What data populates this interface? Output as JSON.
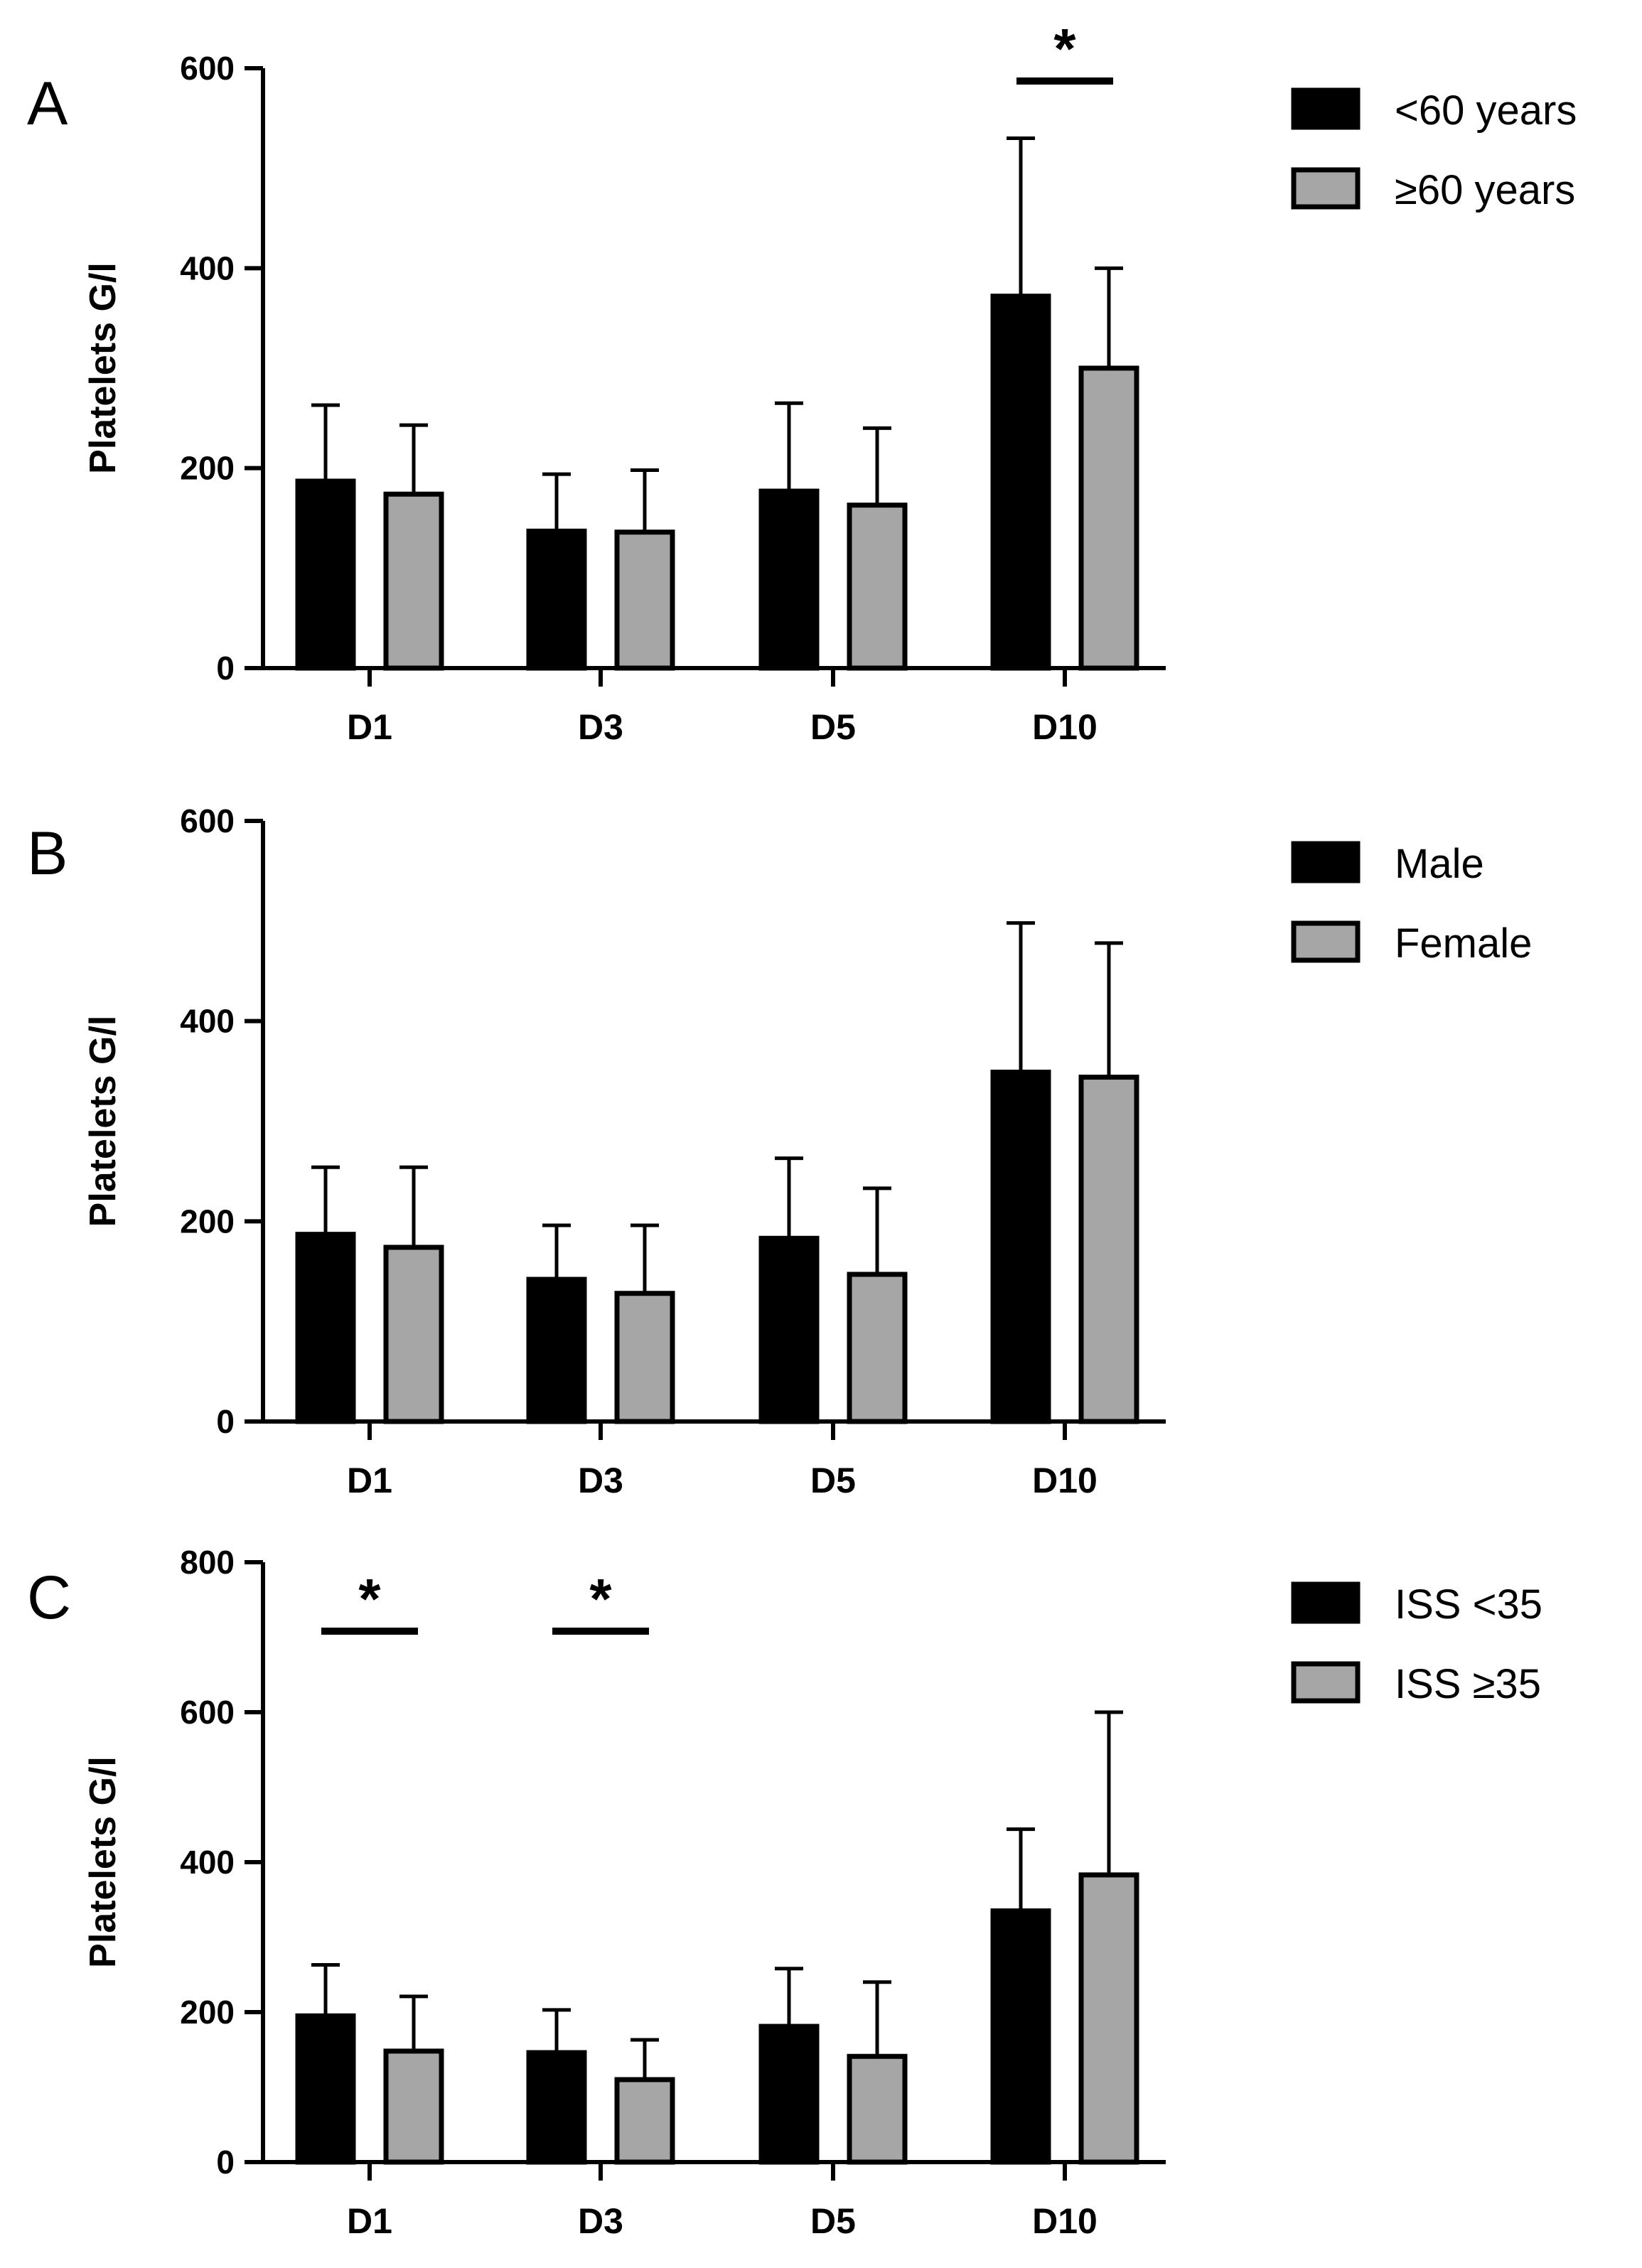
{
  "colors": {
    "series_1": "#000000",
    "series_2": "#a6a6a6",
    "axis": "#000000"
  },
  "chart_data": [
    {
      "type": "bar",
      "panel": "A",
      "ylabel": "Platelets G/l",
      "xlabel": "",
      "categories": [
        "D1",
        "D3",
        "D5",
        "D10"
      ],
      "ylim": [
        0,
        600
      ],
      "yticks": [
        "0",
        "200",
        "400",
        "600"
      ],
      "legend_position": "right",
      "series": [
        {
          "name": "<60 years",
          "values": [
            187,
            137,
            177,
            372
          ],
          "errors": [
            76,
            57,
            88,
            158
          ]
        },
        {
          "name": "≥60 years",
          "values": [
            174,
            136,
            163,
            300
          ],
          "errors": [
            69,
            62,
            77,
            100
          ]
        }
      ],
      "significance": [
        {
          "category": "D10",
          "label": "*"
        }
      ]
    },
    {
      "type": "bar",
      "panel": "B",
      "ylabel": "Platelets G/l",
      "xlabel": "",
      "categories": [
        "D1",
        "D3",
        "D5",
        "D10"
      ],
      "ylim": [
        0,
        600
      ],
      "yticks": [
        "0",
        "200",
        "400",
        "600"
      ],
      "legend_position": "right",
      "series": [
        {
          "name": "Male",
          "values": [
            187,
            142,
            183,
            349
          ],
          "errors": [
            67,
            54,
            80,
            149
          ]
        },
        {
          "name": "Female",
          "values": [
            174,
            128,
            147,
            344
          ],
          "errors": [
            80,
            68,
            86,
            134
          ]
        }
      ],
      "significance": []
    },
    {
      "type": "bar",
      "panel": "C",
      "ylabel": "Platelets G/l",
      "xlabel": "",
      "categories": [
        "D1",
        "D3",
        "D5",
        "D10"
      ],
      "ylim": [
        0,
        800
      ],
      "yticks": [
        "0",
        "200",
        "400",
        "600",
        "800"
      ],
      "legend_position": "right",
      "series": [
        {
          "name": "ISS <35",
          "values": [
            195,
            146,
            181,
            335
          ],
          "errors": [
            68,
            57,
            77,
            109
          ]
        },
        {
          "name": "ISS ≥35",
          "values": [
            148,
            110,
            141,
            383
          ],
          "errors": [
            73,
            53,
            99,
            217
          ]
        }
      ],
      "significance": [
        {
          "category": "D1",
          "label": "*"
        },
        {
          "category": "D3",
          "label": "*"
        }
      ]
    }
  ]
}
